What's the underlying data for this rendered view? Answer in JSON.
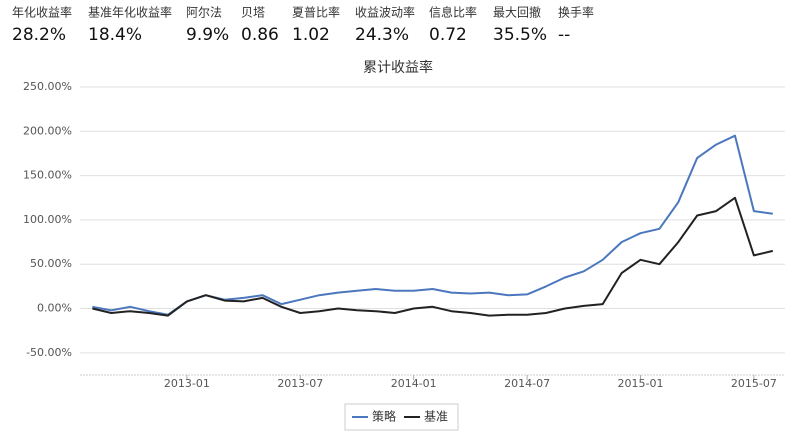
{
  "stats": [
    {
      "label": "年化收益率",
      "value": "28.2%"
    },
    {
      "label": "基准年化收益率",
      "value": "18.4%"
    },
    {
      "label": "阿尔法",
      "value": "9.9%"
    },
    {
      "label": "贝塔",
      "value": "0.86"
    },
    {
      "label": "夏普比率",
      "value": "1.02"
    },
    {
      "label": "收益波动率",
      "value": "24.3%"
    },
    {
      "label": "信息比率",
      "value": "0.72"
    },
    {
      "label": "最大回撤",
      "value": "35.5%"
    },
    {
      "label": "换手率",
      "value": "--"
    }
  ],
  "chart_data": {
    "type": "line",
    "title": "累计收益率",
    "x": [
      "2012-08",
      "2012-09",
      "2012-10",
      "2012-11",
      "2012-12",
      "2013-01",
      "2013-02",
      "2013-03",
      "2013-04",
      "2013-05",
      "2013-06",
      "2013-07",
      "2013-08",
      "2013-09",
      "2013-10",
      "2013-11",
      "2013-12",
      "2014-01",
      "2014-02",
      "2014-03",
      "2014-04",
      "2014-05",
      "2014-06",
      "2014-07",
      "2014-08",
      "2014-09",
      "2014-10",
      "2014-11",
      "2014-12",
      "2015-01",
      "2015-02",
      "2015-03",
      "2015-04",
      "2015-05",
      "2015-06",
      "2015-07",
      "2015-08"
    ],
    "series": [
      {
        "name": "策略",
        "color": "#4b77be",
        "values": [
          2,
          -2,
          2,
          -3,
          -7,
          8,
          15,
          10,
          12,
          15,
          5,
          10,
          15,
          18,
          20,
          22,
          20,
          20,
          22,
          18,
          17,
          18,
          15,
          16,
          25,
          35,
          42,
          55,
          75,
          85,
          90,
          120,
          170,
          185,
          195,
          110,
          107
        ]
      },
      {
        "name": "基准",
        "color": "#222222",
        "values": [
          0,
          -5,
          -3,
          -5,
          -8,
          8,
          15,
          9,
          8,
          12,
          2,
          -5,
          -3,
          0,
          -2,
          -3,
          -5,
          0,
          2,
          -3,
          -5,
          -8,
          -7,
          -7,
          -5,
          0,
          3,
          5,
          40,
          55,
          50,
          75,
          105,
          110,
          125,
          60,
          65
        ]
      }
    ],
    "ylim": [
      -75,
      250
    ],
    "yticks": [
      {
        "value": -50,
        "label": "-50.00%"
      },
      {
        "value": 0,
        "label": "0.00%"
      },
      {
        "value": 50,
        "label": "50.00%"
      },
      {
        "value": 100,
        "label": "100.00%"
      },
      {
        "value": 150,
        "label": "150.00%"
      },
      {
        "value": 200,
        "label": "200.00%"
      },
      {
        "value": 250,
        "label": "250.00%"
      }
    ],
    "xticks": [
      "2013-01",
      "2013-07",
      "2014-01",
      "2014-07",
      "2015-01",
      "2015-07"
    ],
    "grid": true,
    "legend": "bottom"
  }
}
